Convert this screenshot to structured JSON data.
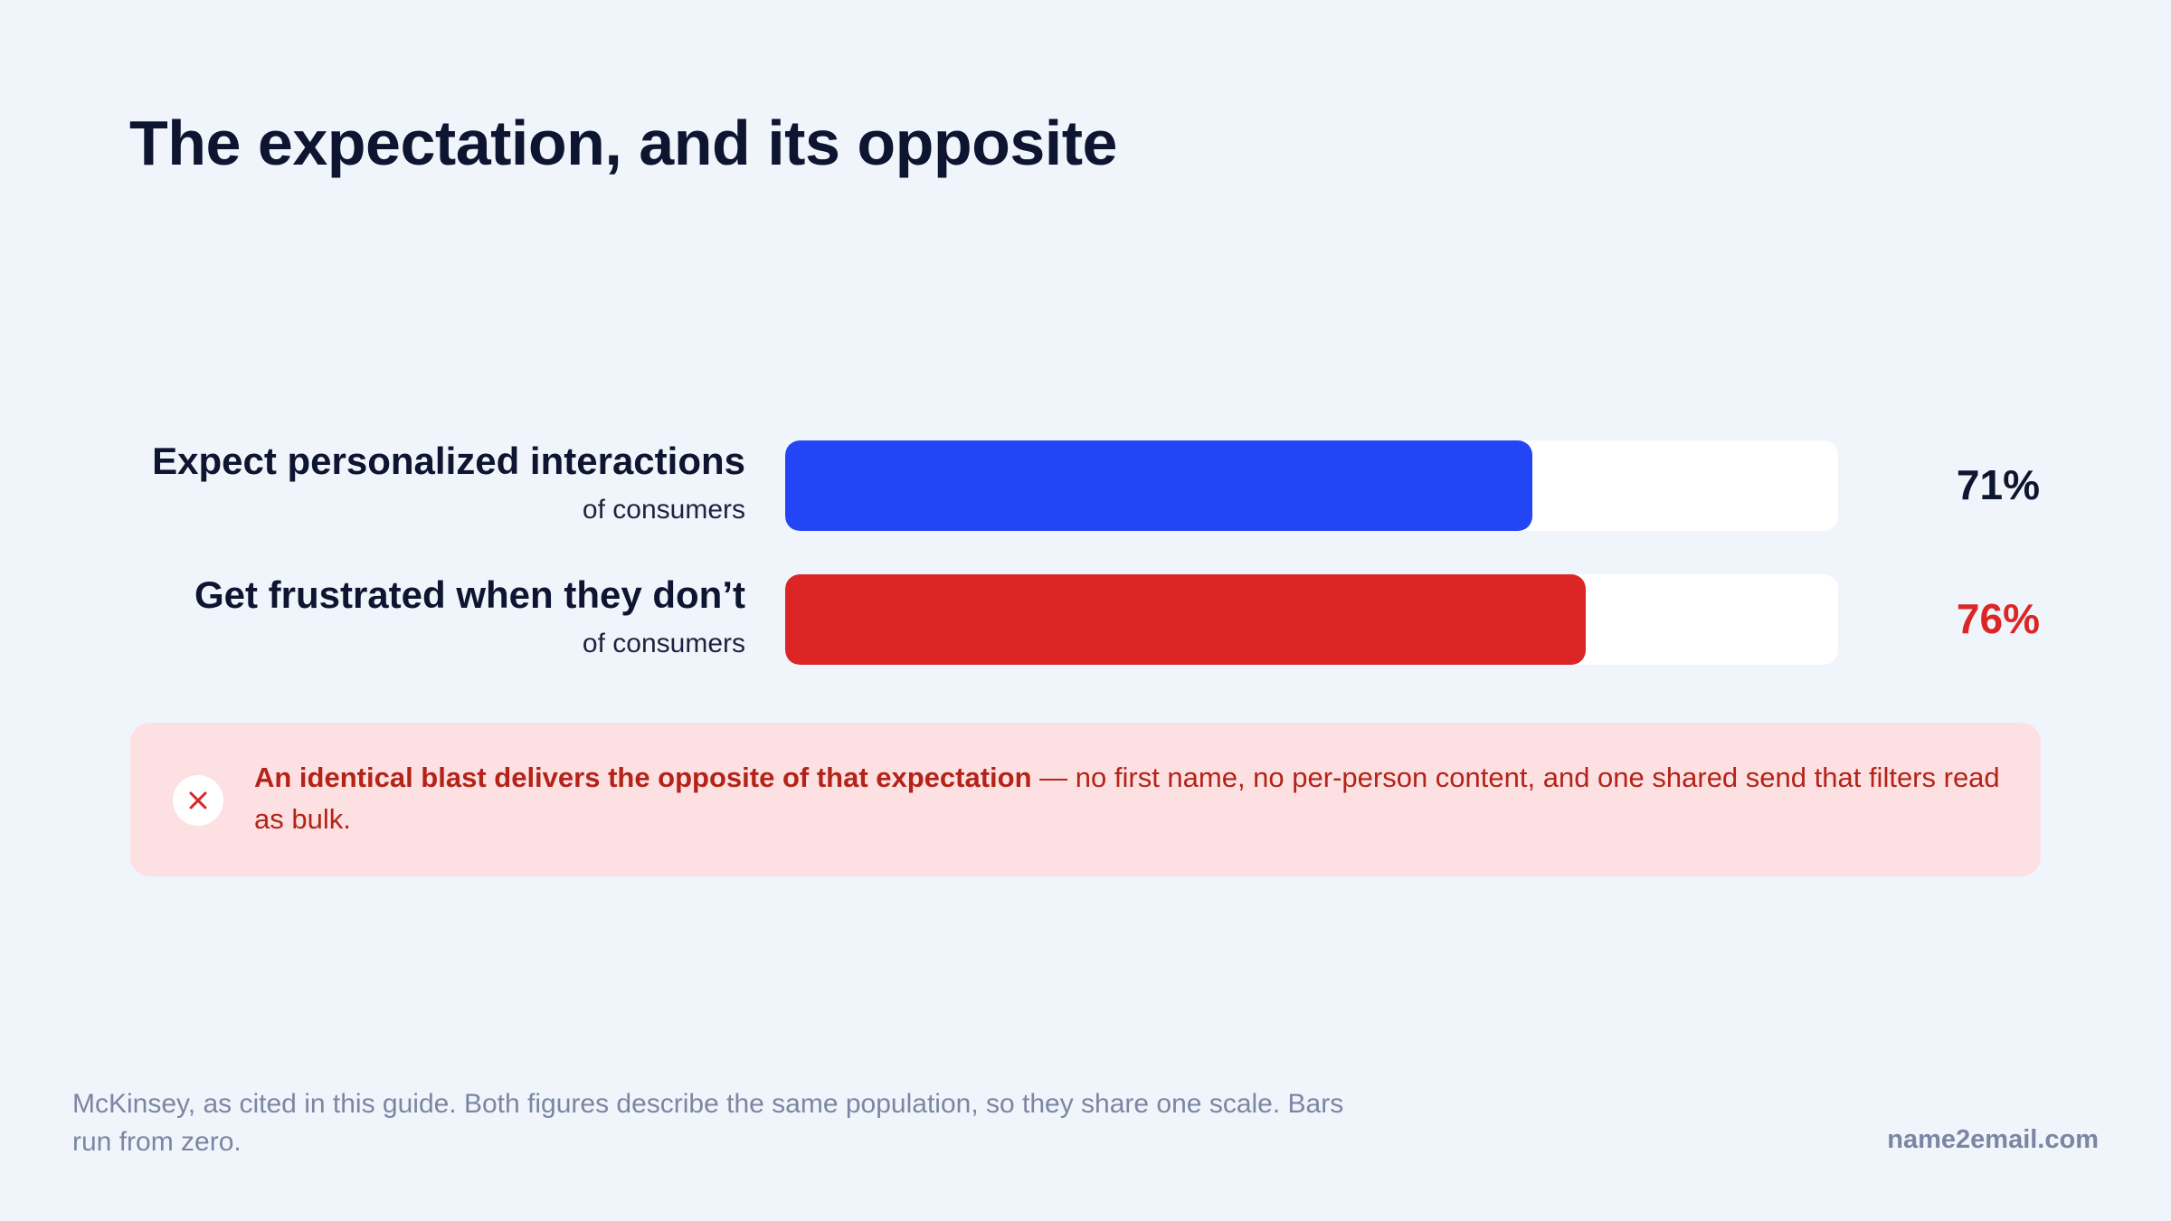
{
  "title": "The expectation, and its opposite",
  "chart_data": {
    "type": "bar",
    "orientation": "horizontal",
    "categories": [
      "Expect personalized interactions",
      "Get frustrated when they don’t"
    ],
    "sublabels": [
      "of consumers",
      "of consumers"
    ],
    "values": [
      71,
      76
    ],
    "value_labels": [
      "71%",
      "76%"
    ],
    "colors": [
      "#2246f5",
      "#dc2626"
    ],
    "value_label_colors": [
      "#0d1530",
      "#dc2626"
    ],
    "xlim": [
      0,
      100
    ],
    "grid": false
  },
  "callout": {
    "icon": "close-icon",
    "strong": "An identical blast delivers the opposite of that expectation",
    "rest": " — no first name, no per-person content, and one shared send that filters read as bulk."
  },
  "footnote": "McKinsey, as cited in this guide. Both figures describe the same population, so they share one scale. Bars run from zero.",
  "brand": "name2email.com"
}
